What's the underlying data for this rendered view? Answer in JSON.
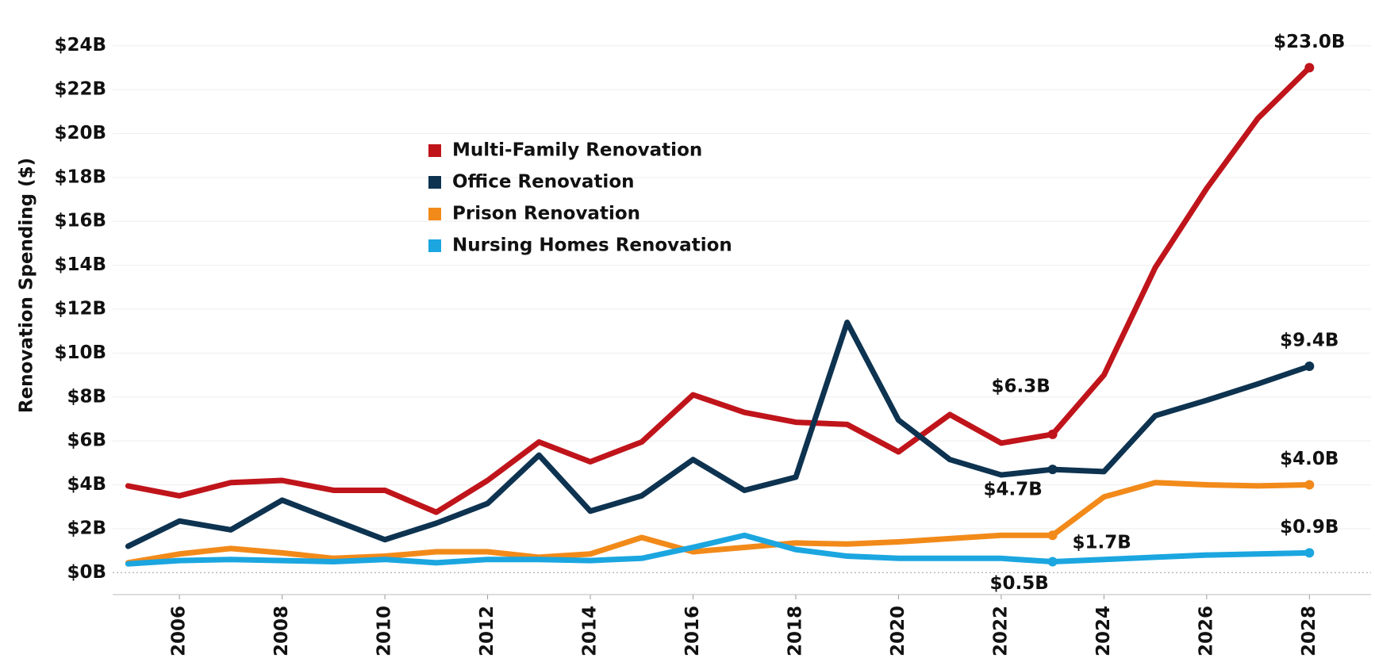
{
  "chart_data": {
    "type": "line",
    "ylabel": "Renovation Spending ($)",
    "x": [
      2005,
      2006,
      2007,
      2008,
      2009,
      2010,
      2011,
      2012,
      2013,
      2014,
      2015,
      2016,
      2017,
      2018,
      2019,
      2020,
      2021,
      2022,
      2023,
      2024,
      2025,
      2026,
      2027,
      2028
    ],
    "series": [
      {
        "name": "Multi-Family Renovation",
        "color": "#c0141b",
        "values": [
          3.95,
          3.5,
          4.1,
          4.2,
          3.75,
          3.75,
          2.75,
          4.2,
          5.95,
          5.05,
          5.95,
          8.1,
          7.3,
          6.85,
          6.75,
          5.5,
          7.2,
          5.9,
          6.3,
          9.0,
          13.9,
          17.5,
          20.7,
          23.0
        ],
        "value_labels": [
          null,
          null,
          null,
          null,
          null,
          null,
          null,
          null,
          null,
          null,
          null,
          null,
          null,
          null,
          null,
          null,
          null,
          null,
          "$6.3B",
          null,
          null,
          null,
          null,
          "$23.0B"
        ]
      },
      {
        "name": "Office Renovation",
        "color": "#0d3350",
        "values": [
          1.2,
          2.35,
          1.95,
          3.3,
          2.4,
          1.5,
          2.25,
          3.15,
          5.35,
          2.8,
          3.5,
          5.15,
          3.75,
          4.35,
          11.4,
          6.95,
          5.15,
          4.45,
          4.7,
          4.6,
          7.15,
          7.85,
          8.6,
          9.4
        ],
        "value_labels": [
          null,
          null,
          null,
          null,
          null,
          null,
          null,
          null,
          null,
          null,
          null,
          null,
          null,
          null,
          null,
          null,
          null,
          null,
          "$4.7B",
          null,
          null,
          null,
          null,
          "$9.4B"
        ]
      },
      {
        "name": "Prison Renovation",
        "color": "#f28a1a",
        "values": [
          0.45,
          0.85,
          1.1,
          0.9,
          0.65,
          0.75,
          0.95,
          0.95,
          0.7,
          0.85,
          1.6,
          0.95,
          1.15,
          1.35,
          1.3,
          1.4,
          1.55,
          1.7,
          1.7,
          3.45,
          4.1,
          4.0,
          3.95,
          4.0
        ],
        "value_labels": [
          null,
          null,
          null,
          null,
          null,
          null,
          null,
          null,
          null,
          null,
          null,
          null,
          null,
          null,
          null,
          null,
          null,
          null,
          "$1.7B",
          null,
          null,
          null,
          null,
          "$4.0B"
        ]
      },
      {
        "name": "Nursing Homes Renovation",
        "color": "#1ba6e0",
        "values": [
          0.4,
          0.55,
          0.6,
          0.55,
          0.5,
          0.6,
          0.45,
          0.6,
          0.6,
          0.55,
          0.65,
          1.15,
          1.7,
          1.05,
          0.75,
          0.65,
          0.65,
          0.65,
          0.5,
          0.6,
          0.7,
          0.8,
          0.85,
          0.9
        ],
        "value_labels": [
          null,
          null,
          null,
          null,
          null,
          null,
          null,
          null,
          null,
          null,
          null,
          null,
          null,
          null,
          null,
          null,
          null,
          null,
          "$0.5B",
          null,
          null,
          null,
          null,
          "$0.9B"
        ]
      }
    ],
    "xlim": [
      2004.7,
      2029.2
    ],
    "xticks": [
      2006,
      2008,
      2010,
      2012,
      2014,
      2016,
      2018,
      2020,
      2022,
      2024,
      2026,
      2028
    ],
    "ylim": [
      -1,
      25
    ],
    "yticks": [
      {
        "value": 0,
        "label": "$0B"
      },
      {
        "value": 2,
        "label": "$2B"
      },
      {
        "value": 4,
        "label": "$4B"
      },
      {
        "value": 6,
        "label": "$6B"
      },
      {
        "value": 8,
        "label": "$8B"
      },
      {
        "value": 10,
        "label": "$10B"
      },
      {
        "value": 12,
        "label": "$12B"
      },
      {
        "value": 14,
        "label": "$14B"
      },
      {
        "value": 16,
        "label": "$16B"
      },
      {
        "value": 18,
        "label": "$18B"
      },
      {
        "value": 20,
        "label": "$20B"
      },
      {
        "value": 22,
        "label": "$22B"
      },
      {
        "value": 24,
        "label": "$24B"
      }
    ],
    "grid": true,
    "legend": "upper-left"
  }
}
